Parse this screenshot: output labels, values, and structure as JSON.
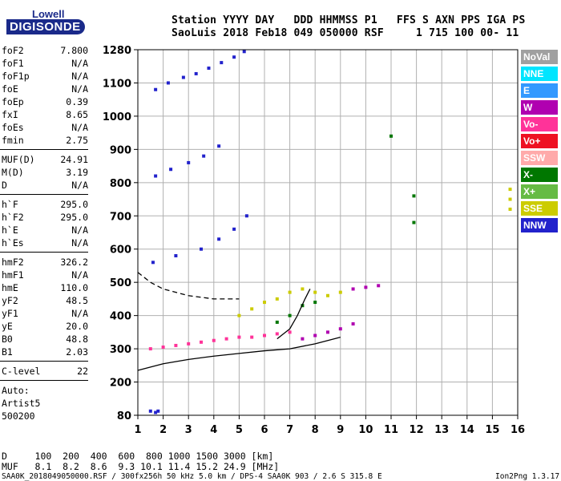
{
  "logo": {
    "line1": "Lowell",
    "line2": "DIGISONDE"
  },
  "header": {
    "row1": "Station YYYY DAY   DDD HHMMSS P1   FFS S AXN PPS IGA PS",
    "row2": "SaoLuis 2018 Feb18 049 050000 RSF     1 715 100 00- 11"
  },
  "params_group1": [
    {
      "label": "foF2",
      "value": "7.800"
    },
    {
      "label": "foF1",
      "value": "N/A"
    },
    {
      "label": "foF1p",
      "value": "N/A"
    },
    {
      "label": "foE",
      "value": "N/A"
    },
    {
      "label": "foEp",
      "value": "0.39"
    },
    {
      "label": "fxI",
      "value": "8.65"
    },
    {
      "label": "foEs",
      "value": "N/A"
    },
    {
      "label": "fmin",
      "value": "2.75"
    }
  ],
  "params_group2": [
    {
      "label": "MUF(D)",
      "value": "24.91"
    },
    {
      "label": "M(D)",
      "value": "3.19"
    },
    {
      "label": "D",
      "value": "N/A"
    }
  ],
  "params_group3": [
    {
      "label": "h`F",
      "value": "295.0"
    },
    {
      "label": "h`F2",
      "value": "295.0"
    },
    {
      "label": "h`E",
      "value": "N/A"
    },
    {
      "label": "h`Es",
      "value": "N/A"
    }
  ],
  "params_group4": [
    {
      "label": "hmF2",
      "value": "326.2"
    },
    {
      "label": "hmF1",
      "value": "N/A"
    },
    {
      "label": "hmE",
      "value": "110.0"
    },
    {
      "label": "yF2",
      "value": "48.5"
    },
    {
      "label": "yF1",
      "value": "N/A"
    },
    {
      "label": "yE",
      "value": "20.0"
    },
    {
      "label": "B0",
      "value": "48.8"
    },
    {
      "label": "B1",
      "value": "2.03"
    }
  ],
  "params_group5": [
    {
      "label": "C-level",
      "value": "22"
    }
  ],
  "autoscale": {
    "line1": "Auto:",
    "line2": "Artist5",
    "line3": "500200"
  },
  "legend": [
    {
      "label": "NoVal",
      "color": "#a0a0a0"
    },
    {
      "label": "NNE",
      "color": "#00e5ff"
    },
    {
      "label": "E",
      "color": "#3399ff"
    },
    {
      "label": "W",
      "color": "#b000b0"
    },
    {
      "label": "Vo-",
      "color": "#ff3399"
    },
    {
      "label": "Vo+",
      "color": "#ee1122"
    },
    {
      "label": "SSW",
      "color": "#ffaaaa"
    },
    {
      "label": "X-",
      "color": "#007700"
    },
    {
      "label": "X+",
      "color": "#66bb44"
    },
    {
      "label": "SSE",
      "color": "#cccc00"
    },
    {
      "label": "NNW",
      "color": "#2222cc"
    }
  ],
  "bottom": {
    "d_row": "D     100  200  400  600  800 1000 1500 3000 [km]",
    "muf_row": "MUF   8.1  8.2  8.6  9.3 10.1 11.4 15.2 24.9 [MHz]"
  },
  "footer": {
    "left": "SAA0K_2018049050000.RSF / 300fx256h 50 kHz 5.0 km / DPS-4 SAA0K 903 / 2.6 S 315.8 E",
    "right": "Ion2Png 1.3.17"
  },
  "chart_data": {
    "type": "scatter",
    "title": "",
    "xlabel": "",
    "ylabel": "",
    "xlim": [
      1,
      16
    ],
    "ylim": [
      80,
      1280
    ],
    "y_scale": "nonlinear (virtual height, km)",
    "grid": true,
    "legend_placement": "right",
    "x_ticks": [
      1,
      2,
      3,
      4,
      5,
      6,
      7,
      8,
      9,
      10,
      11,
      12,
      13,
      14,
      15,
      16
    ],
    "y_ticks": [
      80,
      200,
      300,
      400,
      500,
      600,
      700,
      800,
      900,
      1000,
      1100,
      1280
    ],
    "series": [
      {
        "color": "#2222cc",
        "points": [
          [
            1.7,
            1080
          ],
          [
            2.2,
            1100
          ],
          [
            2.8,
            1130
          ],
          [
            3.3,
            1150
          ],
          [
            3.8,
            1180
          ],
          [
            4.3,
            1210
          ],
          [
            4.8,
            1240
          ],
          [
            5.2,
            1270
          ]
        ]
      },
      {
        "color": "#2222cc",
        "points": [
          [
            1.7,
            820
          ],
          [
            2.3,
            840
          ],
          [
            3.0,
            860
          ],
          [
            3.6,
            880
          ],
          [
            4.2,
            910
          ]
        ]
      },
      {
        "color": "#2222cc",
        "points": [
          [
            1.6,
            560
          ],
          [
            2.5,
            580
          ],
          [
            3.5,
            600
          ],
          [
            4.2,
            630
          ],
          [
            4.8,
            660
          ],
          [
            5.3,
            700
          ]
        ]
      },
      {
        "color": "#ff3399",
        "points": [
          [
            1.5,
            300
          ],
          [
            2.0,
            305
          ],
          [
            2.5,
            310
          ],
          [
            3.0,
            315
          ],
          [
            3.5,
            320
          ],
          [
            4.0,
            325
          ],
          [
            4.5,
            330
          ],
          [
            5.0,
            335
          ],
          [
            5.5,
            335
          ],
          [
            6.0,
            340
          ],
          [
            6.5,
            345
          ],
          [
            7.0,
            350
          ]
        ]
      },
      {
        "color": "#b000b0",
        "points": [
          [
            7.5,
            330
          ],
          [
            8.0,
            340
          ],
          [
            8.5,
            350
          ],
          [
            9.0,
            360
          ],
          [
            9.5,
            375
          ],
          [
            9.5,
            480
          ],
          [
            10.0,
            485
          ],
          [
            10.5,
            490
          ]
        ]
      },
      {
        "color": "#cccc00",
        "points": [
          [
            5.0,
            400
          ],
          [
            5.5,
            420
          ],
          [
            6.0,
            440
          ],
          [
            6.5,
            450
          ],
          [
            7.0,
            470
          ],
          [
            7.5,
            480
          ],
          [
            8.0,
            470
          ],
          [
            8.5,
            460
          ],
          [
            9.0,
            470
          ]
        ]
      },
      {
        "color": "#007700",
        "points": [
          [
            6.5,
            380
          ],
          [
            7.0,
            400
          ],
          [
            7.5,
            430
          ],
          [
            8.0,
            440
          ],
          [
            11.0,
            940
          ],
          [
            11.9,
            760
          ],
          [
            11.9,
            680
          ]
        ]
      },
      {
        "color": "#cccc00",
        "points": [
          [
            15.7,
            780
          ],
          [
            15.7,
            750
          ],
          [
            15.7,
            720
          ]
        ]
      },
      {
        "color": "#2222cc",
        "points": [
          [
            1.5,
            95
          ],
          [
            1.7,
            90
          ],
          [
            1.8,
            95
          ]
        ]
      }
    ],
    "curves": [
      {
        "color": "#000000",
        "style": "solid",
        "points": [
          [
            1,
            235
          ],
          [
            2,
            255
          ],
          [
            3,
            268
          ],
          [
            4,
            278
          ],
          [
            5,
            286
          ],
          [
            6,
            294
          ],
          [
            7,
            300
          ],
          [
            8,
            315
          ],
          [
            9,
            335
          ]
        ]
      },
      {
        "color": "#000000",
        "style": "dashed",
        "points": [
          [
            1,
            530
          ],
          [
            1.5,
            500
          ],
          [
            2,
            480
          ],
          [
            2.5,
            470
          ],
          [
            3,
            460
          ],
          [
            3.5,
            455
          ],
          [
            4,
            450
          ],
          [
            5,
            450
          ]
        ]
      },
      {
        "color": "#000000",
        "style": "solid",
        "points": [
          [
            6.5,
            330
          ],
          [
            7,
            360
          ],
          [
            7.3,
            400
          ],
          [
            7.6,
            450
          ],
          [
            7.8,
            480
          ]
        ]
      }
    ]
  }
}
